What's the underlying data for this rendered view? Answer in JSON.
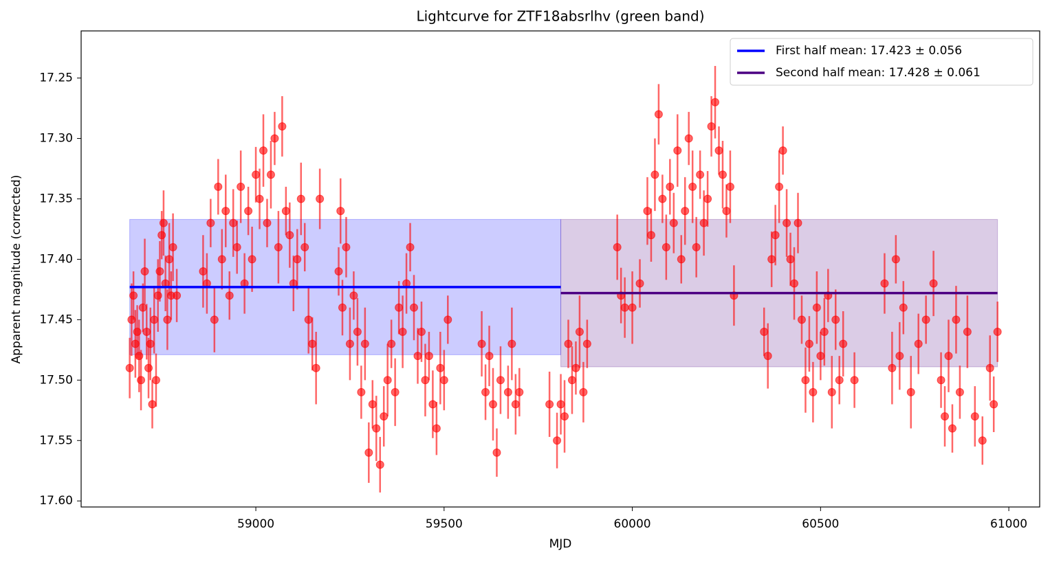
{
  "chart_data": {
    "type": "errorbar",
    "title": "Lightcurve for ZTF18absrlhv (green band)",
    "x_label": "MJD",
    "y_label": "Apparent magnitude (corrected)",
    "xlim": [
      58536,
      61082
    ],
    "ylim": [
      17.605,
      17.211
    ],
    "xticks": [
      59000,
      59500,
      60000,
      60500,
      61000
    ],
    "yticks": [
      17.25,
      {
        "value": 17.3,
        "label": "17.30"
      },
      17.35,
      {
        "value": 17.4,
        "label": "17.40"
      },
      17.45,
      {
        "value": 17.5,
        "label": "17.50"
      },
      17.55,
      {
        "value": 17.6,
        "label": "17.60"
      }
    ],
    "series": [
      {
        "color": "#ff0000",
        "x": [
          58665,
          58670,
          58675,
          58680,
          58685,
          58690,
          58695,
          58700,
          58705,
          58710,
          58715,
          58720,
          58725,
          58730,
          58735,
          58740,
          58745,
          58750,
          58755,
          58760,
          58765,
          58770,
          58775,
          58780,
          58790,
          58860,
          58870,
          58880,
          58890,
          58900,
          58910,
          58920,
          58930,
          58940,
          58950,
          58960,
          58970,
          58980,
          58990,
          59000,
          59010,
          59020,
          59030,
          59040,
          59050,
          59060,
          59070,
          59080,
          59090,
          59100,
          59110,
          59120,
          59130,
          59140,
          59150,
          59160,
          59170,
          59220,
          59225,
          59230,
          59240,
          59250,
          59260,
          59270,
          59280,
          59290,
          59300,
          59310,
          59320,
          59330,
          59340,
          59350,
          59360,
          59370,
          59380,
          59390,
          59400,
          59410,
          59420,
          59430,
          59440,
          59450,
          59460,
          59470,
          59480,
          59490,
          59500,
          59510,
          59600,
          59610,
          59620,
          59630,
          59640,
          59650,
          59670,
          59680,
          59690,
          59700,
          59780,
          59800,
          59810,
          59820,
          59830,
          59840,
          59850,
          59860,
          59870,
          59880,
          59960,
          59970,
          59980,
          60000,
          60020,
          60040,
          60050,
          60060,
          60070,
          60080,
          60090,
          60100,
          60110,
          60120,
          60130,
          60140,
          60150,
          60160,
          60170,
          60180,
          60190,
          60200,
          60210,
          60220,
          60230,
          60240,
          60250,
          60260,
          60270,
          60350,
          60360,
          60370,
          60380,
          60390,
          60400,
          60410,
          60420,
          60430,
          60440,
          60450,
          60460,
          60470,
          60480,
          60490,
          60500,
          60510,
          60520,
          60530,
          60540,
          60550,
          60560,
          60590,
          60670,
          60690,
          60700,
          60710,
          60720,
          60740,
          60760,
          60780,
          60800,
          60820,
          60830,
          60840,
          60850,
          60860,
          60870,
          60890,
          60910,
          60930,
          60950,
          60960,
          60970
        ],
        "values": [
          17.49,
          17.45,
          17.43,
          17.47,
          17.46,
          17.48,
          17.5,
          17.44,
          17.41,
          17.46,
          17.49,
          17.47,
          17.52,
          17.45,
          17.5,
          17.43,
          17.41,
          17.38,
          17.37,
          17.42,
          17.45,
          17.4,
          17.43,
          17.39,
          17.43,
          17.41,
          17.42,
          17.37,
          17.45,
          17.34,
          17.4,
          17.36,
          17.43,
          17.37,
          17.39,
          17.34,
          17.42,
          17.36,
          17.4,
          17.33,
          17.35,
          17.31,
          17.37,
          17.33,
          17.3,
          17.39,
          17.29,
          17.36,
          17.38,
          17.42,
          17.4,
          17.35,
          17.39,
          17.45,
          17.47,
          17.49,
          17.35,
          17.41,
          17.36,
          17.44,
          17.39,
          17.47,
          17.43,
          17.46,
          17.51,
          17.47,
          17.56,
          17.52,
          17.54,
          17.57,
          17.53,
          17.5,
          17.47,
          17.51,
          17.44,
          17.46,
          17.42,
          17.39,
          17.44,
          17.48,
          17.46,
          17.5,
          17.48,
          17.52,
          17.54,
          17.49,
          17.5,
          17.45,
          17.47,
          17.51,
          17.48,
          17.52,
          17.56,
          17.5,
          17.51,
          17.47,
          17.52,
          17.51,
          17.52,
          17.55,
          17.52,
          17.53,
          17.47,
          17.5,
          17.49,
          17.46,
          17.51,
          17.47,
          17.39,
          17.43,
          17.44,
          17.44,
          17.42,
          17.36,
          17.38,
          17.33,
          17.28,
          17.35,
          17.39,
          17.34,
          17.37,
          17.31,
          17.4,
          17.36,
          17.3,
          17.34,
          17.39,
          17.33,
          17.37,
          17.35,
          17.29,
          17.27,
          17.31,
          17.33,
          17.36,
          17.34,
          17.43,
          17.46,
          17.48,
          17.4,
          17.38,
          17.34,
          17.31,
          17.37,
          17.4,
          17.42,
          17.37,
          17.45,
          17.5,
          17.47,
          17.51,
          17.44,
          17.48,
          17.46,
          17.43,
          17.51,
          17.45,
          17.5,
          17.47,
          17.5,
          17.42,
          17.49,
          17.4,
          17.48,
          17.44,
          17.51,
          17.47,
          17.45,
          17.42,
          17.5,
          17.53,
          17.48,
          17.54,
          17.45,
          17.51,
          17.46,
          17.53,
          17.55,
          17.49,
          17.52,
          17.46
        ],
        "errors": [
          0.025,
          0.03,
          0.02,
          0.028,
          0.022,
          0.03,
          0.025,
          0.02,
          0.027,
          0.023,
          0.025,
          0.03,
          0.02,
          0.028,
          0.022,
          0.03,
          0.025,
          0.02,
          0.027,
          0.023,
          0.025,
          0.03,
          0.02,
          0.028,
          0.022,
          0.03,
          0.025,
          0.02,
          0.027,
          0.023,
          0.025,
          0.03,
          0.02,
          0.028,
          0.022,
          0.03,
          0.025,
          0.02,
          0.027,
          0.023,
          0.025,
          0.03,
          0.02,
          0.028,
          0.022,
          0.03,
          0.025,
          0.02,
          0.027,
          0.023,
          0.025,
          0.03,
          0.02,
          0.028,
          0.022,
          0.03,
          0.025,
          0.02,
          0.027,
          0.023,
          0.025,
          0.03,
          0.02,
          0.028,
          0.022,
          0.03,
          0.025,
          0.02,
          0.027,
          0.023,
          0.025,
          0.03,
          0.02,
          0.028,
          0.022,
          0.03,
          0.025,
          0.02,
          0.027,
          0.023,
          0.025,
          0.03,
          0.02,
          0.028,
          0.022,
          0.03,
          0.025,
          0.02,
          0.027,
          0.023,
          0.025,
          0.03,
          0.02,
          0.028,
          0.022,
          0.03,
          0.025,
          0.02,
          0.027,
          0.023,
          0.025,
          0.03,
          0.02,
          0.028,
          0.022,
          0.03,
          0.025,
          0.02,
          0.027,
          0.023,
          0.025,
          0.03,
          0.02,
          0.028,
          0.022,
          0.03,
          0.025,
          0.02,
          0.027,
          0.023,
          0.025,
          0.03,
          0.02,
          0.028,
          0.022,
          0.03,
          0.025,
          0.02,
          0.027,
          0.023,
          0.025,
          0.03,
          0.02,
          0.028,
          0.022,
          0.03,
          0.025,
          0.02,
          0.027,
          0.023,
          0.025,
          0.03,
          0.02,
          0.028,
          0.022,
          0.03,
          0.025,
          0.02,
          0.027,
          0.023,
          0.025,
          0.03,
          0.02,
          0.028,
          0.022,
          0.03,
          0.025,
          0.02,
          0.027,
          0.023,
          0.025,
          0.03,
          0.02,
          0.028,
          0.022,
          0.03,
          0.025,
          0.02,
          0.027,
          0.023,
          0.025,
          0.03,
          0.02,
          0.028,
          0.022,
          0.03,
          0.025,
          0.02,
          0.027,
          0.023,
          0.025
        ]
      }
    ],
    "means": [
      {
        "name": "First half mean: 17.423 ± 0.056",
        "color": "#0000ff",
        "value": 17.423,
        "error": 0.056,
        "x": [
          58665,
          59810
        ]
      },
      {
        "name": "Second half mean: 17.428 ± 0.061",
        "color": "#4b0082",
        "value": 17.428,
        "error": 0.061,
        "x": [
          59810,
          60970
        ]
      }
    ],
    "legend": "upper right"
  }
}
